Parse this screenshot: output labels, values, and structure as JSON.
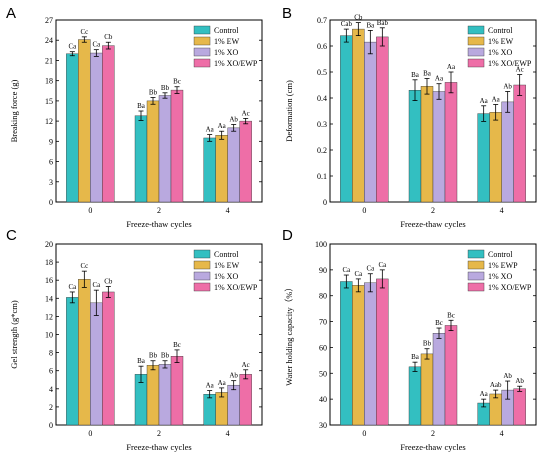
{
  "colors": {
    "control": "#33bfc1",
    "ew": "#e6b84a",
    "xo": "#b9a9df",
    "xoewp": "#ee6ea7",
    "frame": "#000000"
  },
  "chart_data": [
    {
      "panel": "A",
      "type": "bar",
      "xlabel": "Freeze-thaw cycles",
      "ylabel": "Breaking force (g)",
      "categories": [
        "0",
        "2",
        "4"
      ],
      "ylim": [
        0,
        27
      ],
      "yticks": [
        0,
        3,
        6,
        9,
        12,
        15,
        18,
        21,
        24,
        27
      ],
      "legend_position": "top-right",
      "series": [
        {
          "name": "Control",
          "color": "#33bfc1",
          "values": [
            22.0,
            12.8,
            9.5
          ],
          "errors": [
            0.3,
            0.7,
            0.5
          ],
          "labels": [
            "Ca",
            "Ba",
            "Aa"
          ]
        },
        {
          "name": "1% EW",
          "color": "#e6b84a",
          "values": [
            24.1,
            15.0,
            9.9
          ],
          "errors": [
            0.4,
            0.5,
            0.6
          ],
          "labels": [
            "Cc",
            "Bb",
            "Aa"
          ]
        },
        {
          "name": "1% XO",
          "color": "#b9a9df",
          "values": [
            22.1,
            15.8,
            11.0
          ],
          "errors": [
            0.5,
            0.4,
            0.5
          ],
          "labels": [
            "Ca",
            "Bb",
            "Ab"
          ]
        },
        {
          "name": "1% XO/EWP",
          "color": "#ee6ea7",
          "values": [
            23.2,
            16.6,
            12.0
          ],
          "errors": [
            0.5,
            0.5,
            0.4
          ],
          "labels": [
            "Cb",
            "Bc",
            "Ac"
          ]
        }
      ]
    },
    {
      "panel": "B",
      "type": "bar",
      "xlabel": "Freeze-thaw cycles",
      "ylabel": "Deformation (cm)",
      "categories": [
        "0",
        "2",
        "4"
      ],
      "ylim": [
        0.0,
        0.7
      ],
      "yticks": [
        0.0,
        0.1,
        0.2,
        0.3,
        0.4,
        0.5,
        0.6,
        0.7
      ],
      "legend_position": "top-right",
      "series": [
        {
          "name": "Control",
          "color": "#33bfc1",
          "values": [
            0.64,
            0.43,
            0.34
          ],
          "errors": [
            0.025,
            0.04,
            0.03
          ],
          "labels": [
            "Cab",
            "Ba",
            "Aa"
          ]
        },
        {
          "name": "1% EW",
          "color": "#e6b84a",
          "values": [
            0.665,
            0.445,
            0.345
          ],
          "errors": [
            0.025,
            0.03,
            0.03
          ],
          "labels": [
            "Cb",
            "Ba",
            "Aa"
          ]
        },
        {
          "name": "1% XO",
          "color": "#b9a9df",
          "values": [
            0.615,
            0.425,
            0.385
          ],
          "errors": [
            0.045,
            0.03,
            0.04
          ],
          "labels": [
            "Ba",
            "Aa",
            "Ab"
          ]
        },
        {
          "name": "1% XO/EWP",
          "color": "#ee6ea7",
          "values": [
            0.635,
            0.46,
            0.45
          ],
          "errors": [
            0.035,
            0.04,
            0.04
          ],
          "labels": [
            "Bab",
            "Aa",
            "Ac"
          ]
        }
      ]
    },
    {
      "panel": "C",
      "type": "bar",
      "xlabel": "Freeze-thaw cycles",
      "ylabel": "Gel strength (g*cm)",
      "categories": [
        "0",
        "2",
        "4"
      ],
      "ylim": [
        0,
        20
      ],
      "yticks": [
        0,
        2,
        4,
        6,
        8,
        10,
        12,
        14,
        16,
        18,
        20
      ],
      "legend_position": "top-right",
      "series": [
        {
          "name": "Control",
          "color": "#33bfc1",
          "values": [
            14.1,
            5.6,
            3.4
          ],
          "errors": [
            0.6,
            0.9,
            0.4
          ],
          "labels": [
            "Ca",
            "Ba",
            "Aa"
          ]
        },
        {
          "name": "1% EW",
          "color": "#e6b84a",
          "values": [
            16.1,
            6.6,
            3.6
          ],
          "errors": [
            0.9,
            0.5,
            0.5
          ],
          "labels": [
            "Cc",
            "Bb",
            "Aa"
          ]
        },
        {
          "name": "1% XO",
          "color": "#b9a9df",
          "values": [
            13.5,
            6.7,
            4.4
          ],
          "errors": [
            1.4,
            0.4,
            0.5
          ],
          "labels": [
            "Ca",
            "Bb",
            "Ab"
          ]
        },
        {
          "name": "1% XO/EWP",
          "color": "#ee6ea7",
          "values": [
            14.7,
            7.6,
            5.6
          ],
          "errors": [
            0.6,
            0.7,
            0.5
          ],
          "labels": [
            "Cb",
            "Bc",
            "Ac"
          ]
        }
      ]
    },
    {
      "panel": "D",
      "type": "bar",
      "xlabel": "Freeze-thaw cycles",
      "ylabel": "Water holding capacity（%）",
      "categories": [
        "0",
        "2",
        "4"
      ],
      "ylim": [
        30,
        100
      ],
      "yticks": [
        30,
        40,
        50,
        60,
        70,
        80,
        90,
        100
      ],
      "legend_position": "top-right",
      "series": [
        {
          "name": "Control",
          "color": "#33bfc1",
          "values": [
            85.5,
            52.5,
            38.5
          ],
          "errors": [
            2.5,
            1.8,
            1.5
          ],
          "labels": [
            "Ca",
            "Ba",
            "Aa"
          ]
        },
        {
          "name": "1% EWP",
          "color": "#e6b84a",
          "values": [
            84.0,
            57.5,
            42.0
          ],
          "errors": [
            2.5,
            2.0,
            1.5
          ],
          "labels": [
            "Ca",
            "Bb",
            "Aab"
          ]
        },
        {
          "name": "1% XO",
          "color": "#b9a9df",
          "values": [
            85.0,
            65.5,
            43.5
          ],
          "errors": [
            3.5,
            2.0,
            3.5
          ],
          "labels": [
            "Ca",
            "Bc",
            "Ab"
          ]
        },
        {
          "name": "1% XO/EWP",
          "color": "#ee6ea7",
          "values": [
            86.5,
            68.5,
            44.0
          ],
          "errors": [
            3.5,
            2.0,
            1.0
          ],
          "labels": [
            "Ca",
            "Bc",
            "Ab"
          ]
        }
      ]
    }
  ]
}
